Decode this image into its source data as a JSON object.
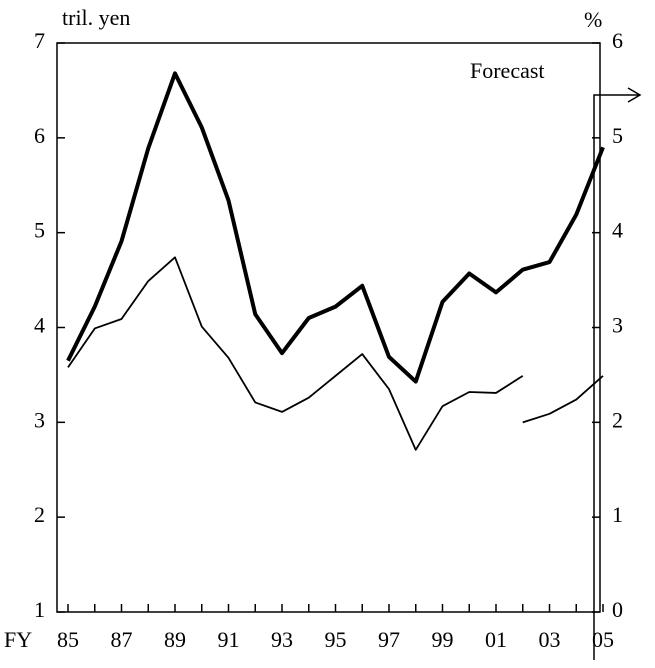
{
  "chart_data": {
    "type": "line",
    "y_label": "tril. yen",
    "y2_label": "%",
    "x_label": "FY",
    "annotation": "Forecast",
    "categories": [
      "85",
      null,
      "87",
      null,
      "89",
      null,
      "91",
      null,
      "93",
      null,
      "95",
      null,
      "97",
      null,
      "99",
      null,
      "01",
      null,
      "03",
      null,
      "05"
    ],
    "series": [
      {
        "color": "#000000",
        "width": 4,
        "values": [
          3.65,
          4.22,
          4.91,
          5.89,
          6.68,
          6.11,
          5.34,
          4.14,
          3.73,
          4.1,
          4.22,
          4.44,
          3.69,
          3.43,
          4.27,
          4.57,
          4.37,
          4.61,
          4.69,
          5.19,
          5.9
        ]
      },
      {
        "color": "#000000",
        "width": 1.8,
        "values": [
          3.58,
          3.99,
          4.09,
          4.49,
          4.74,
          4.01,
          3.68,
          3.21,
          3.11,
          3.26,
          3.49,
          3.72,
          3.35,
          2.71,
          3.17,
          3.32,
          3.31,
          3.49,
          null,
          null,
          null
        ]
      },
      {
        "color": "#000000",
        "width": 1.8,
        "values": [
          null,
          null,
          null,
          null,
          null,
          null,
          null,
          null,
          null,
          null,
          null,
          null,
          null,
          null,
          null,
          null,
          null,
          3.0,
          3.09,
          3.24,
          3.49
        ]
      }
    ],
    "ylim": [
      1,
      7
    ],
    "yticks": [
      1,
      2,
      3,
      4,
      5,
      6,
      7
    ],
    "y2lim": [
      0,
      6
    ],
    "y2ticks": [
      0,
      1,
      2,
      3,
      4,
      5,
      6
    ]
  }
}
